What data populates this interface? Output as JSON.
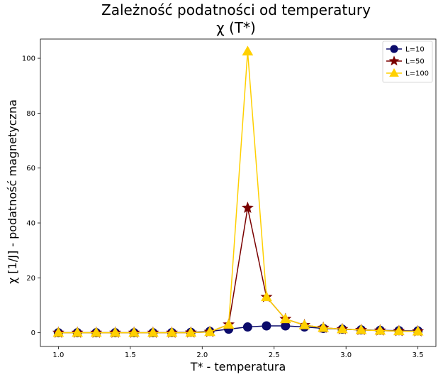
{
  "chart_data": {
    "type": "line",
    "title": "Zależność podatności od temperatury",
    "subtitle": "χ (T*)",
    "xlabel": "T*  -  temperatura",
    "ylabel": "χ [1/J]  -  podatność magnetyczna",
    "xlim": [
      0.875,
      3.625
    ],
    "ylim": [
      -5,
      107
    ],
    "xticks": [
      1.0,
      1.5,
      2.0,
      2.5,
      3.0,
      3.5
    ],
    "xtick_labels": [
      "1.0",
      "1.5",
      "2.0",
      "2.5",
      "3.0",
      "3.5"
    ],
    "yticks": [
      0,
      20,
      40,
      60,
      80,
      100
    ],
    "ytick_labels": [
      "0",
      "20",
      "40",
      "60",
      "80",
      "100"
    ],
    "grid": false,
    "legend_position": "top-right",
    "x": [
      1.0,
      1.132,
      1.263,
      1.395,
      1.526,
      1.658,
      1.789,
      1.921,
      2.053,
      2.184,
      2.316,
      2.447,
      2.579,
      2.711,
      2.842,
      2.974,
      3.105,
      3.237,
      3.368,
      3.5
    ],
    "series": [
      {
        "name": "L=10",
        "color": "#0b0b6b",
        "marker": "circle",
        "values": [
          0.0,
          0.0,
          0.0,
          0.0,
          0.0,
          0.0,
          0.05,
          0.15,
          0.5,
          1.3,
          2.1,
          2.5,
          2.5,
          2.1,
          1.6,
          1.3,
          1.05,
          0.9,
          0.75,
          0.65
        ]
      },
      {
        "name": "L=50",
        "color": "#7a0000",
        "marker": "star",
        "values": [
          0.0,
          0.0,
          0.0,
          0.0,
          0.0,
          0.0,
          0.0,
          0.05,
          0.3,
          3.0,
          45.5,
          13.0,
          5.0,
          2.8,
          1.8,
          1.3,
          1.0,
          0.8,
          0.6,
          0.5
        ]
      },
      {
        "name": "L=100",
        "color": "#ffd000",
        "marker": "triangle",
        "values": [
          0.0,
          0.0,
          0.0,
          0.0,
          0.0,
          0.0,
          0.0,
          0.05,
          0.3,
          3.0,
          102.5,
          13.0,
          5.0,
          2.8,
          1.8,
          1.3,
          1.0,
          0.8,
          0.6,
          0.5
        ]
      }
    ]
  }
}
